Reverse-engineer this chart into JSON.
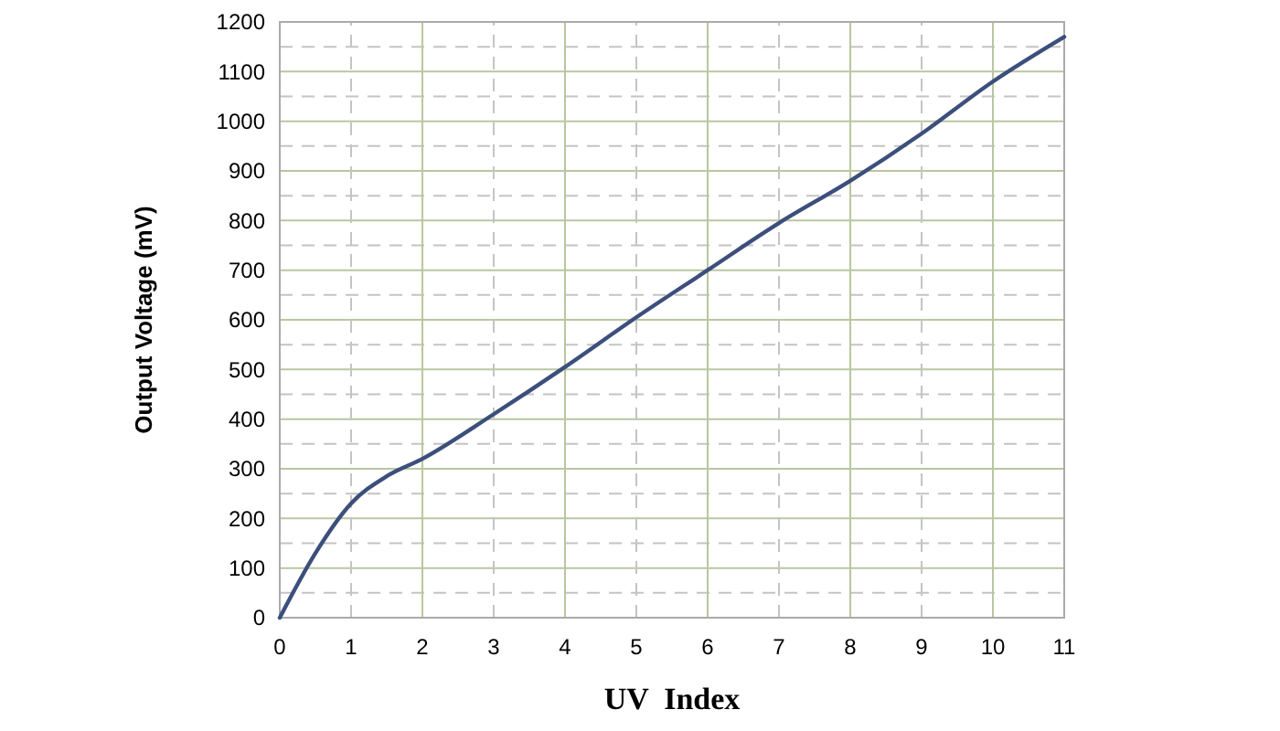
{
  "chart_data": {
    "type": "line",
    "xlabel": "UV  Index",
    "ylabel": "Output Voltage (mV)",
    "x": [
      0,
      0.5,
      1,
      1.5,
      2,
      3,
      4,
      5,
      6,
      7,
      8,
      9,
      10,
      11
    ],
    "series": [
      {
        "color": "#3c4f7c",
        "values": [
          0,
          130,
          230,
          285,
          320,
          410,
          505,
          605,
          700,
          795,
          880,
          975,
          1080,
          1170
        ]
      }
    ],
    "xlim": [
      0,
      11
    ],
    "xticks": [
      0,
      1,
      2,
      3,
      4,
      5,
      6,
      7,
      8,
      9,
      10,
      11
    ],
    "ylim": [
      0,
      1200
    ],
    "yticks": [
      0,
      100,
      200,
      300,
      400,
      500,
      600,
      700,
      800,
      900,
      1000,
      1100,
      1200
    ],
    "grid": true,
    "marker": "none",
    "line_style": "solid"
  }
}
